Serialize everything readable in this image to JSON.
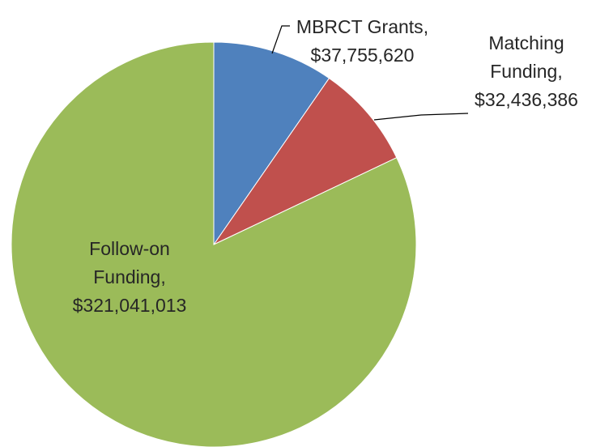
{
  "chart_data": {
    "type": "pie",
    "categories": [
      "MBRCT Grants",
      "Matching Funding",
      "Follow-on Funding"
    ],
    "values": [
      37755620,
      32436386,
      321041013
    ],
    "value_labels": [
      "$37,755,620",
      "$32,436,386",
      "$321,041,013"
    ],
    "label_separator": ",",
    "colors": [
      "#4f81bd",
      "#c0504d",
      "#9bbb59"
    ]
  }
}
